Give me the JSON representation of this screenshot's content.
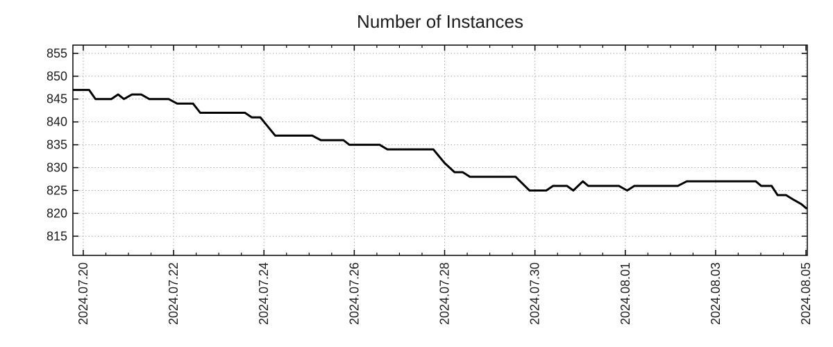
{
  "chart_data": {
    "type": "line",
    "title": "Number of Instances",
    "legend": "none",
    "grid": true,
    "x_axis": {
      "kind": "date",
      "tick_labels": [
        "2024.07.20",
        "2024.07.22",
        "2024.07.24",
        "2024.07.26",
        "2024.07.28",
        "2024.07.30",
        "2024.08.01",
        "2024.08.03",
        "2024.08.05"
      ],
      "tick_day_offsets": [
        0,
        2,
        4,
        6,
        8,
        10,
        12,
        14,
        16
      ],
      "minor_tick_interval_days": 0.5,
      "domain_days": [
        -0.23,
        16.03
      ],
      "label_rotation_deg": -90
    },
    "y_axis": {
      "tick_labels": [
        "815",
        "820",
        "825",
        "830",
        "835",
        "840",
        "845",
        "850",
        "855"
      ],
      "tick_values": [
        815,
        820,
        825,
        830,
        835,
        840,
        845,
        850,
        855
      ],
      "domain": [
        810.8,
        856.8
      ]
    },
    "series": [
      {
        "name": "instances",
        "color": "#000000",
        "points_day_value": [
          [
            -0.23,
            847
          ],
          [
            0.13,
            847
          ],
          [
            0.27,
            845
          ],
          [
            0.62,
            845
          ],
          [
            0.77,
            846
          ],
          [
            0.9,
            845
          ],
          [
            1.08,
            846
          ],
          [
            1.28,
            846
          ],
          [
            1.46,
            845
          ],
          [
            1.89,
            845
          ],
          [
            2.08,
            844
          ],
          [
            2.43,
            844
          ],
          [
            2.59,
            842
          ],
          [
            3.58,
            842
          ],
          [
            3.73,
            841
          ],
          [
            3.92,
            841
          ],
          [
            4.25,
            837
          ],
          [
            5.07,
            837
          ],
          [
            5.26,
            836
          ],
          [
            5.76,
            836
          ],
          [
            5.89,
            835
          ],
          [
            6.56,
            835
          ],
          [
            6.73,
            834
          ],
          [
            7.75,
            834
          ],
          [
            8.0,
            831
          ],
          [
            8.22,
            829
          ],
          [
            8.4,
            829
          ],
          [
            8.56,
            828
          ],
          [
            9.57,
            828
          ],
          [
            9.88,
            825
          ],
          [
            10.25,
            825
          ],
          [
            10.4,
            826
          ],
          [
            10.71,
            826
          ],
          [
            10.85,
            825
          ],
          [
            11.06,
            827
          ],
          [
            11.18,
            826
          ],
          [
            11.86,
            826
          ],
          [
            12.04,
            825
          ],
          [
            12.2,
            826
          ],
          [
            13.16,
            826
          ],
          [
            13.36,
            827
          ],
          [
            14.89,
            827
          ],
          [
            15.01,
            826
          ],
          [
            15.24,
            826
          ],
          [
            15.37,
            824
          ],
          [
            15.56,
            824
          ],
          [
            15.72,
            823
          ],
          [
            15.9,
            822
          ],
          [
            16.02,
            821
          ]
        ]
      }
    ],
    "value_start": 847,
    "value_end": 821
  },
  "style": {
    "line_color": "#000000",
    "grid_color": "#a8a8a8",
    "axis_color": "#000000",
    "text_color": "#1c1c1c",
    "background": "#ffffff"
  }
}
